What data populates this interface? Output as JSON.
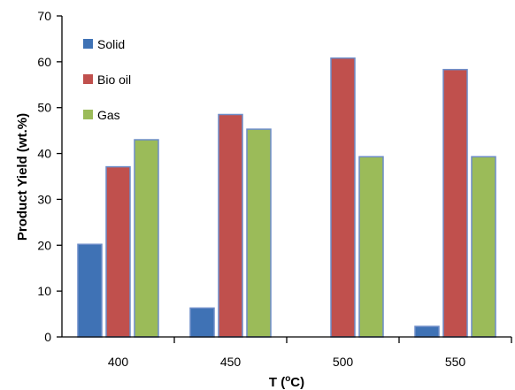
{
  "chart_data": {
    "type": "bar",
    "categories": [
      "400",
      "450",
      "500",
      "550"
    ],
    "series": [
      {
        "name": "Solid",
        "values": [
          20.2,
          6.3,
          0,
          2.3
        ],
        "color": "#3F72B5"
      },
      {
        "name": "Bio oil",
        "values": [
          37.1,
          48.5,
          60.8,
          58.3
        ],
        "color": "#C0504D"
      },
      {
        "name": "Gas",
        "values": [
          43.0,
          45.3,
          39.3,
          39.3
        ],
        "color": "#9BBB59"
      }
    ],
    "bar_outline_color": "#6C8CC8",
    "xlabel": "T (oC)",
    "xlabel_parts": {
      "main": "T (",
      "sup": "o",
      "tail": "C)"
    },
    "ylabel": "Product Yield (wt.%)",
    "ylim": [
      0,
      70
    ],
    "yticks": [
      0,
      10,
      20,
      30,
      40,
      50,
      60,
      70
    ],
    "grid": false,
    "legend_position": "top-left"
  }
}
